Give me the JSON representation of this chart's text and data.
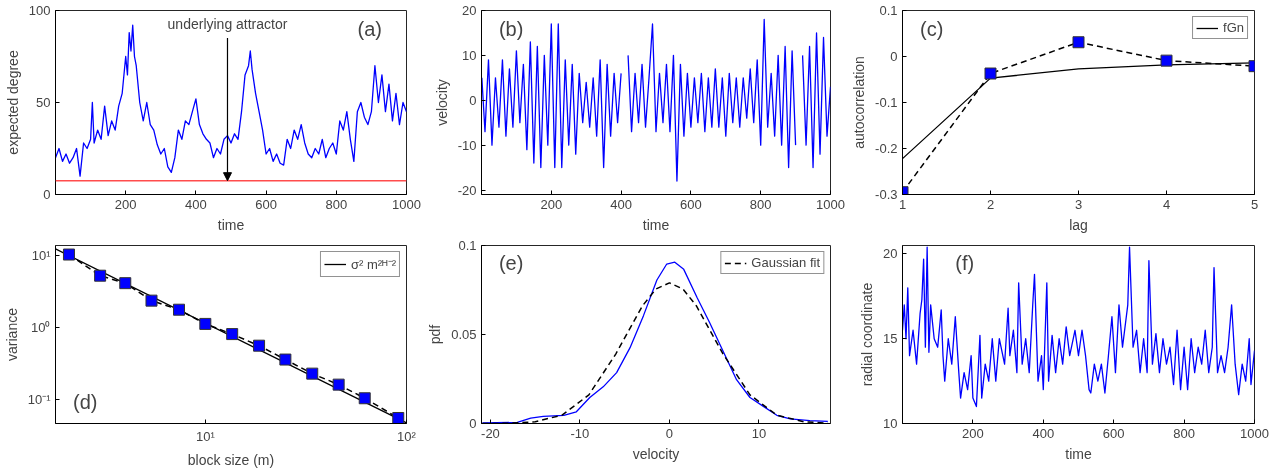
{
  "chart_data": [
    {
      "type": "line",
      "xlabel": "time",
      "ylabel": "expected degree",
      "xlim": [
        0,
        1000
      ],
      "ylim": [
        0,
        100
      ],
      "xticks": [
        200,
        400,
        600,
        800,
        1000
      ],
      "yticks": [
        0,
        50,
        100
      ],
      "annotations": [
        "(a)",
        {
          "text": "underlying attractor",
          "x": 490,
          "y": 7.5
        }
      ],
      "ref_lines": [
        {
          "axis": "y",
          "value": 7.5,
          "color": "#ff4d4d"
        }
      ],
      "series": [
        {
          "color": "#0000ff",
          "x": [
            0,
            10,
            20,
            30,
            40,
            50,
            60,
            70,
            80,
            90,
            100,
            105,
            110,
            120,
            130,
            140,
            150,
            160,
            170,
            180,
            190,
            200,
            205,
            210,
            215,
            220,
            225,
            230,
            240,
            250,
            260,
            270,
            280,
            290,
            300,
            310,
            320,
            330,
            340,
            350,
            360,
            370,
            380,
            390,
            400,
            410,
            420,
            430,
            440,
            450,
            460,
            470,
            480,
            490,
            500,
            510,
            520,
            530,
            540,
            550,
            555,
            560,
            570,
            580,
            590,
            600,
            610,
            620,
            630,
            640,
            650,
            660,
            670,
            680,
            690,
            700,
            710,
            720,
            730,
            740,
            750,
            760,
            770,
            780,
            790,
            800,
            810,
            820,
            830,
            840,
            850,
            860,
            870,
            880,
            890,
            900,
            910,
            920,
            930,
            940,
            950,
            960,
            970,
            980,
            990,
            1000
          ],
          "values": [
            20,
            25,
            18,
            22,
            17,
            20,
            25,
            10,
            28,
            25,
            30,
            50,
            28,
            35,
            30,
            48,
            32,
            40,
            35,
            48,
            55,
            75,
            65,
            88,
            78,
            92,
            75,
            70,
            50,
            40,
            50,
            38,
            35,
            27,
            22,
            25,
            15,
            12,
            20,
            35,
            30,
            40,
            38,
            45,
            52,
            38,
            33,
            30,
            28,
            20,
            25,
            22,
            30,
            32,
            28,
            33,
            30,
            45,
            65,
            70,
            78,
            68,
            55,
            45,
            35,
            22,
            25,
            18,
            22,
            17,
            16,
            30,
            25,
            35,
            30,
            38,
            28,
            22,
            20,
            25,
            22,
            30,
            20,
            25,
            28,
            22,
            40,
            35,
            45,
            30,
            18,
            45,
            50,
            42,
            38,
            45,
            70,
            50,
            65,
            45,
            60,
            40,
            55,
            38,
            50,
            45
          ]
        }
      ]
    },
    {
      "type": "line",
      "xlabel": "time",
      "ylabel": "velocity",
      "xlim": [
        0,
        1000
      ],
      "ylim": [
        -21,
        20
      ],
      "xticks": [
        200,
        400,
        600,
        800,
        1000
      ],
      "yticks": [
        -20,
        -10,
        0,
        10,
        20
      ],
      "annotations": [
        "(b)"
      ],
      "series": [
        {
          "color": "#0000ff",
          "x": [
            1,
            10,
            20,
            30,
            40,
            50,
            60,
            70,
            80,
            90,
            100,
            110,
            120,
            130,
            140,
            150,
            160,
            170,
            180,
            190,
            200,
            210,
            220,
            230,
            240,
            250,
            260,
            270,
            280,
            290,
            300,
            310,
            320,
            330,
            340,
            350,
            360,
            370,
            380,
            390,
            400,
            410,
            420,
            430,
            440,
            450,
            460,
            470,
            480,
            490,
            500,
            510,
            520,
            530,
            540,
            550,
            560,
            570,
            580,
            590,
            600,
            610,
            620,
            630,
            640,
            650,
            660,
            670,
            680,
            690,
            700,
            710,
            720,
            730,
            740,
            750,
            760,
            770,
            780,
            790,
            800,
            810,
            820,
            830,
            840,
            850,
            860,
            870,
            880,
            890,
            900,
            910,
            920,
            930,
            940,
            950,
            960,
            970,
            980,
            990,
            1000
          ],
          "values": [
            5,
            -7,
            9,
            -10,
            5,
            -6,
            9,
            -8,
            7,
            -6,
            11,
            -5,
            8,
            -11,
            13,
            -14,
            12,
            -15,
            10,
            -10,
            17,
            -15,
            17,
            -15,
            9,
            -10,
            8,
            -12,
            6,
            -5,
            4,
            -6,
            5,
            -8,
            9,
            -15,
            8,
            -8,
            6,
            -5,
            6,
            null,
            10,
            -7,
            6,
            -5,
            8,
            -6,
            5,
            17,
            -7,
            6,
            -5,
            8,
            -7,
            10,
            -18,
            8,
            -8,
            6,
            -6,
            5,
            -5,
            6,
            -7,
            5,
            -6,
            7,
            -6,
            5,
            -8,
            6,
            -5,
            5,
            -6,
            5,
            -4,
            7,
            -5,
            9,
            -10,
            18,
            -6,
            6,
            -8,
            10,
            -10,
            12,
            -15,
            11,
            -10,
            null,
            10,
            -10,
            12,
            -15,
            15,
            -12,
            14,
            -8,
            3
          ]
        }
      ]
    },
    {
      "type": "line",
      "xlabel": "lag",
      "ylabel": "autocorrelation",
      "xlim": [
        1,
        5
      ],
      "ylim": [
        -0.3,
        0.1
      ],
      "xticks": [
        1,
        2,
        3,
        4,
        5
      ],
      "yticks": [
        -0.3,
        -0.2,
        -0.1,
        0,
        0.1
      ],
      "annotations": [
        "(c)"
      ],
      "legend": "top right",
      "series": [
        {
          "name": "fGn",
          "type": "line",
          "color": "#000000",
          "line_style": "solid",
          "x": [
            1,
            2,
            3,
            4,
            5
          ],
          "values": [
            -0.222,
            -0.047,
            -0.027,
            -0.018,
            -0.014
          ]
        },
        {
          "type": "line",
          "color": "#000000",
          "line_style": "dashed",
          "x": [
            1,
            2,
            3,
            4,
            5
          ],
          "values": [
            -0.295,
            -0.037,
            0.031,
            -0.009,
            -0.021
          ]
        },
        {
          "type": "scatter",
          "marker": "square",
          "color": "#0000ff",
          "x": [
            1,
            2,
            3,
            4,
            5
          ],
          "values": [
            -0.295,
            -0.037,
            0.031,
            -0.009,
            -0.021
          ]
        }
      ]
    },
    {
      "type": "line",
      "xlabel": "block size (m)",
      "ylabel": "variance",
      "log": "xy",
      "xlim": [
        1.8,
        100
      ],
      "ylim": [
        0.047,
        13.6
      ],
      "xticks": [
        {
          "value": 10,
          "label": "10¹"
        },
        {
          "value": 100,
          "label": "10²"
        }
      ],
      "yticks": [
        {
          "value": 0.1,
          "label": "10⁻¹"
        },
        {
          "value": 1,
          "label": "10⁰"
        },
        {
          "value": 10,
          "label": "10¹"
        }
      ],
      "annotations": [
        "(d)"
      ],
      "legend": "top right",
      "series": [
        {
          "name": "σ² m²ᴴ⁻²",
          "type": "line",
          "color": "#000000",
          "line_style": "solid",
          "x": [
            1.8,
            100
          ],
          "values": [
            12.2,
            0.048
          ]
        },
        {
          "type": "line",
          "color": "#000000",
          "line_style": "dashed",
          "x": [
            2.1,
            3,
            4,
            5.4,
            7.4,
            10,
            13.6,
            18.5,
            25,
            34,
            46,
            62,
            91
          ],
          "values": [
            10.2,
            5.2,
            4.1,
            2.35,
            1.76,
            1.12,
            0.81,
            0.56,
            0.36,
            0.23,
            0.162,
            0.105,
            0.056
          ]
        },
        {
          "type": "scatter",
          "marker": "square",
          "color": "#0000ff",
          "x": [
            2.1,
            3,
            4,
            5.4,
            7.4,
            10,
            13.6,
            18.5,
            25,
            34,
            46,
            62,
            91
          ],
          "values": [
            10.2,
            5.2,
            4.1,
            2.35,
            1.76,
            1.12,
            0.81,
            0.56,
            0.36,
            0.23,
            0.162,
            0.105,
            0.056
          ]
        }
      ]
    },
    {
      "type": "line",
      "xlabel": "velocity",
      "ylabel": "pdf",
      "xlim": [
        -21,
        18
      ],
      "ylim": [
        0,
        0.1
      ],
      "xticks": [
        -20,
        -10,
        0,
        10
      ],
      "yticks": [
        0,
        0.05,
        0.1
      ],
      "annotations": [
        "(e)"
      ],
      "legend": "top right",
      "series": [
        {
          "type": "line",
          "color": "#0000ff",
          "line_style": "solid",
          "x": [
            -20.9,
            -17,
            -15.5,
            -14.1,
            -11.8,
            -10.4,
            -8.9,
            -7.4,
            -5.9,
            -4.4,
            -2.9,
            -1.4,
            -0.3,
            0.6,
            1.6,
            3.1,
            4.5,
            6,
            7.5,
            9,
            10.5,
            12,
            13.5,
            15.7,
            17.7
          ],
          "values": [
            0.0004,
            0.0006,
            0.003,
            0.004,
            0.0046,
            0.0066,
            0.0146,
            0.0206,
            0.0286,
            0.0426,
            0.0606,
            0.0806,
            0.0896,
            0.0906,
            0.0866,
            0.0706,
            0.0566,
            0.0406,
            0.0246,
            0.0146,
            0.0096,
            0.0046,
            0.0026,
            0.0016,
            0.0012
          ]
        },
        {
          "name": "Gaussian fit",
          "type": "line",
          "color": "#000000",
          "line_style": "dashed",
          "x": [
            -20.9,
            -18,
            -15,
            -12,
            -9,
            -6,
            -3,
            -1.5,
            0,
            1.5,
            3,
            6,
            9,
            12,
            15,
            17.7
          ],
          "values": [
            0,
            0.0001,
            0.001,
            0.0047,
            0.0161,
            0.039,
            0.0662,
            0.0756,
            0.079,
            0.0756,
            0.0662,
            0.039,
            0.0161,
            0.0047,
            0.001,
            0.0002
          ]
        }
      ]
    },
    {
      "type": "line",
      "xlabel": "time",
      "ylabel": "radial coordinate",
      "xlim": [
        0,
        1000
      ],
      "ylim": [
        10,
        20.5
      ],
      "xticks": [
        200,
        400,
        600,
        800,
        1000
      ],
      "yticks": [
        10,
        15,
        20
      ],
      "annotations": [
        "(f)"
      ],
      "series": [
        {
          "color": "#0000ff",
          "x": [
            0,
            5,
            10,
            15,
            20,
            30,
            40,
            50,
            55,
            60,
            65,
            70,
            75,
            80,
            90,
            100,
            110,
            115,
            120,
            130,
            140,
            150,
            160,
            165,
            175,
            185,
            195,
            200,
            210,
            220,
            225,
            235,
            245,
            255,
            265,
            275,
            290,
            300,
            305,
            315,
            325,
            330,
            340,
            350,
            360,
            370,
            375,
            385,
            395,
            400,
            410,
            415,
            425,
            435,
            445,
            455,
            465,
            475,
            490,
            500,
            510,
            520,
            530,
            535,
            545,
            555,
            565,
            575,
            585,
            595,
            605,
            615,
            625,
            640,
            645,
            655,
            665,
            675,
            685,
            695,
            700,
            710,
            720,
            730,
            740,
            750,
            760,
            770,
            780,
            790,
            800,
            810,
            820,
            830,
            840,
            850,
            860,
            870,
            880,
            885,
            895,
            905,
            915,
            925,
            935,
            945,
            955,
            965,
            975,
            985,
            990,
            1000
          ],
          "values": [
            15.5,
            17,
            15,
            18,
            14,
            15.5,
            13.5,
            16.5,
            17.3,
            19.7,
            14.5,
            20.4,
            14.2,
            17,
            15,
            14.5,
            16.7,
            14,
            12.5,
            15,
            13.5,
            16.3,
            13,
            11.5,
            13,
            12,
            14,
            11.5,
            11,
            15.2,
            11.5,
            13.5,
            12.5,
            15,
            12.5,
            15,
            13.5,
            16.8,
            14,
            15.5,
            13,
            18.3,
            13.5,
            15,
            13,
            17,
            18.8,
            12.5,
            14,
            12,
            18.3,
            12.5,
            15.2,
            13,
            15,
            13.5,
            15.7,
            14,
            15.5,
            14,
            15.5,
            14,
            12,
            11.8,
            13.5,
            12.5,
            13.5,
            11.8,
            14,
            16.3,
            13,
            17,
            14.5,
            17,
            20.4,
            14.5,
            15.5,
            13,
            15,
            13,
            19.6,
            13.5,
            15.3,
            13,
            15,
            13.5,
            14.5,
            12.3,
            15.5,
            12,
            14.5,
            12,
            15,
            13,
            14.5,
            13.5,
            15.5,
            13,
            14.5,
            19.2,
            13,
            14,
            13,
            14.5,
            17,
            13.5,
            11.7,
            13.5,
            12.5,
            15,
            12.3,
            14.3
          ]
        }
      ]
    }
  ]
}
